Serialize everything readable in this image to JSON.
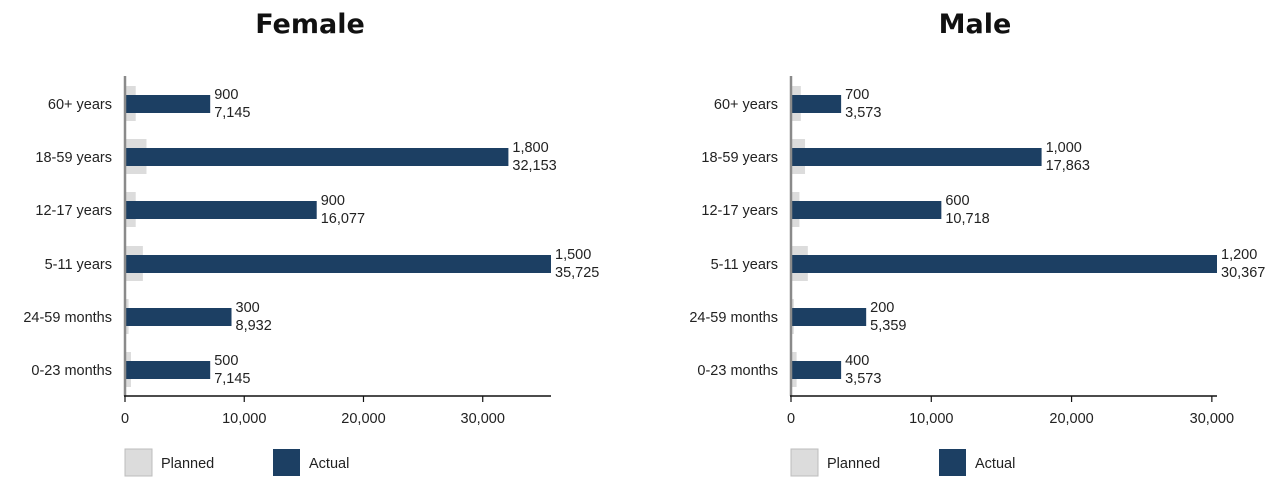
{
  "chart_data": [
    {
      "type": "bar",
      "title": "Female",
      "categories": [
        "60+ years",
        "18-59 years",
        "12-17 years",
        "5-11 years",
        "24-59 months",
        "0-23 months"
      ],
      "series": [
        {
          "name": "Planned",
          "values": [
            900,
            1800,
            900,
            1500,
            300,
            500
          ],
          "labels": [
            "900",
            "1,800",
            "900",
            "1,500",
            "300",
            "500"
          ]
        },
        {
          "name": "Actual",
          "values": [
            7145,
            32153,
            16077,
            35725,
            8932,
            7145
          ],
          "labels": [
            "7,145",
            "32,153",
            "16,077",
            "35,725",
            "8,932",
            "7,145"
          ]
        }
      ],
      "xlim": [
        0,
        35725
      ],
      "xticks": [
        0,
        10000,
        20000,
        30000
      ],
      "xtick_labels": [
        "0",
        "10,000",
        "20,000",
        "30,000"
      ],
      "legend": "bottom-left",
      "grid": false
    },
    {
      "type": "bar",
      "title": "Male",
      "categories": [
        "60+ years",
        "18-59 years",
        "12-17 years",
        "5-11 years",
        "24-59 months",
        "0-23 months"
      ],
      "series": [
        {
          "name": "Planned",
          "values": [
            700,
            1000,
            600,
            1200,
            200,
            400
          ],
          "labels": [
            "700",
            "1,000",
            "600",
            "1,200",
            "200",
            "400"
          ]
        },
        {
          "name": "Actual",
          "values": [
            3573,
            17863,
            10718,
            30367,
            5359,
            3573
          ],
          "labels": [
            "3,573",
            "17,863",
            "10,718",
            "30,367",
            "5,359",
            "3,573"
          ]
        }
      ],
      "xlim": [
        0,
        30367
      ],
      "xticks": [
        0,
        10000,
        20000,
        30000
      ],
      "xtick_labels": [
        "0",
        "10,000",
        "20,000",
        "30,000"
      ],
      "legend": "bottom-left",
      "grid": false
    }
  ],
  "colors": {
    "planned": "#dcdcdc",
    "planned_border": "#bdbdbd",
    "actual": "#1c3f63",
    "axis": "#8a8a8a",
    "text": "#222222"
  }
}
